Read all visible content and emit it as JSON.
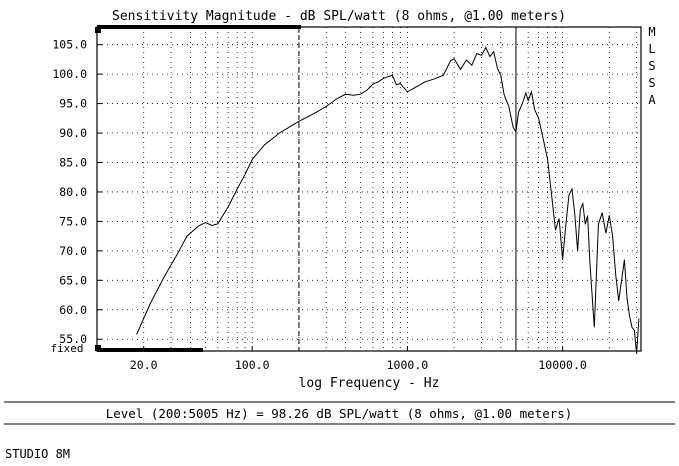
{
  "chart_data": {
    "type": "line",
    "title": "Sensitivity Magnitude - dB SPL/watt (8 ohms, @1.00 meters)",
    "xlabel": "log Frequency - Hz",
    "ylabel": "",
    "x_scale": "log",
    "xlim": [
      10,
      32000
    ],
    "ylim": [
      53,
      108
    ],
    "grid": true,
    "x_tick_labels": [
      "20.0",
      "100.0",
      "1000.0",
      "10000.0"
    ],
    "x_tick_values": [
      20,
      100,
      1000,
      10000
    ],
    "y_ticks": [
      55,
      60,
      65,
      70,
      75,
      80,
      85,
      90,
      95,
      100,
      105
    ],
    "y_tick_labels": [
      "55.0",
      "60.0",
      "65.0",
      "70.0",
      "75.0",
      "80.0",
      "85.0",
      "90.0",
      "95.0",
      "100.0",
      "105.0"
    ],
    "markers_hz": [
      200,
      5005
    ],
    "series": [
      {
        "x": [
          18,
          22,
          27,
          33,
          38,
          42,
          45,
          50,
          55,
          60,
          70,
          80,
          90,
          100,
          120,
          150,
          200,
          250,
          300,
          350,
          400,
          450,
          500,
          550,
          600,
          650,
          700,
          800,
          850,
          900,
          1000,
          1100,
          1300,
          1500,
          1700,
          1900,
          2000,
          2200,
          2400,
          2600,
          2800,
          3000,
          3200,
          3400,
          3600,
          3800,
          4000,
          4200,
          4500,
          4800,
          5000,
          5200,
          5500,
          5800,
          6000,
          6300,
          6600,
          7000,
          7500,
          8000,
          8500,
          9000,
          9500,
          10000,
          10500,
          11000,
          11500,
          12000,
          12500,
          13000,
          13500,
          14000,
          14500,
          15000,
          16000,
          17000,
          18000,
          19000,
          20000,
          21000,
          22000,
          23000,
          24000,
          25000,
          26000,
          27000,
          28000,
          29000,
          30000,
          31000
        ],
        "y": [
          55.8,
          61.0,
          65.5,
          69.5,
          72.5,
          73.5,
          74.2,
          74.8,
          74.3,
          74.6,
          77.5,
          80.5,
          83.0,
          85.5,
          88.0,
          90.0,
          92.0,
          93.3,
          94.5,
          95.8,
          96.6,
          96.4,
          96.6,
          97.3,
          98.3,
          98.7,
          99.3,
          99.8,
          98.2,
          98.4,
          97.0,
          97.6,
          98.7,
          99.2,
          99.8,
          102.3,
          102.6,
          100.8,
          102.4,
          101.5,
          103.5,
          103.2,
          104.5,
          103.0,
          103.8,
          101.0,
          99.8,
          96.5,
          94.5,
          91.0,
          90.2,
          93.5,
          95.0,
          96.8,
          95.5,
          97.0,
          94.0,
          92.5,
          89.0,
          85.5,
          79.5,
          73.5,
          75.5,
          68.5,
          74.5,
          79.5,
          80.5,
          76.0,
          70.0,
          77.0,
          78.0,
          74.5,
          76.0,
          68.0,
          57.0,
          74.5,
          76.5,
          73.0,
          76.0,
          72.5,
          66.0,
          61.5,
          65.0,
          68.5,
          62.0,
          59.0,
          57.0,
          56.5,
          52.5,
          58.5
        ]
      }
    ]
  },
  "vertical_letters": [
    "M",
    "L",
    "S",
    "S",
    "A"
  ],
  "fixed_label": "fixed",
  "level_text": "Level (200:5005 Hz) = 98.26 dB SPL/watt (8 ohms, @1.00 meters)",
  "footer_label": "STUDIO 8M"
}
